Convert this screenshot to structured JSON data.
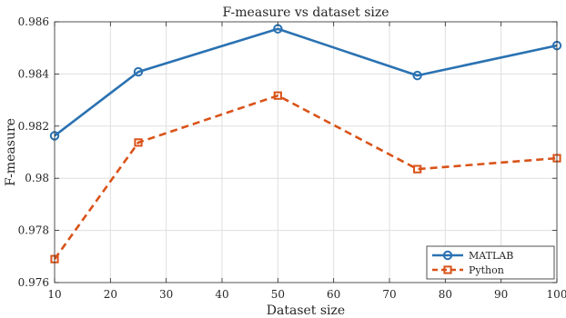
{
  "chart_data": {
    "type": "line",
    "title": "F-measure vs dataset size",
    "xlabel": "Dataset size",
    "ylabel": "F-measure",
    "x": [
      10,
      25,
      50,
      75,
      100
    ],
    "xlim": [
      10,
      100
    ],
    "ylim": [
      0.976,
      0.986
    ],
    "xticks": [
      10,
      20,
      30,
      40,
      50,
      60,
      70,
      80,
      90,
      100
    ],
    "xtick_labels": [
      "10",
      "20",
      "30",
      "40",
      "50",
      "60",
      "70",
      "80",
      "90",
      "100"
    ],
    "yticks": [
      0.976,
      0.978,
      0.98,
      0.982,
      0.984,
      0.986
    ],
    "ytick_labels": [
      "0.976",
      "0.978",
      "0.98",
      "0.982",
      "0.984",
      "0.986"
    ],
    "grid": true,
    "legend_position": "bottom-right",
    "series": [
      {
        "name": "MATLAB",
        "values": [
          0.98163,
          0.98408,
          0.98573,
          0.98394,
          0.98509
        ],
        "color": "#2a72b2",
        "marker": "circle",
        "line_style": "solid"
      },
      {
        "name": "Python",
        "values": [
          0.9769,
          0.98137,
          0.98317,
          0.98035,
          0.98077
        ],
        "color": "#d95319",
        "marker": "square",
        "line_style": "dashed"
      }
    ]
  }
}
